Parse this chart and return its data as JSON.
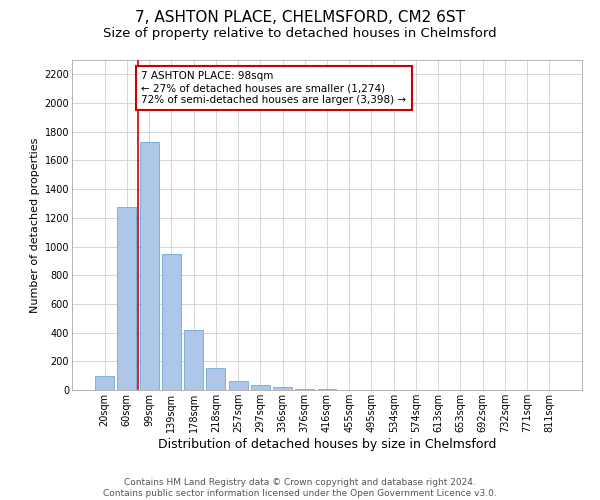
{
  "title1": "7, ASHTON PLACE, CHELMSFORD, CM2 6ST",
  "title2": "Size of property relative to detached houses in Chelmsford",
  "xlabel": "Distribution of detached houses by size in Chelmsford",
  "ylabel": "Number of detached properties",
  "categories": [
    "20sqm",
    "60sqm",
    "99sqm",
    "139sqm",
    "178sqm",
    "218sqm",
    "257sqm",
    "297sqm",
    "336sqm",
    "376sqm",
    "416sqm",
    "455sqm",
    "495sqm",
    "534sqm",
    "574sqm",
    "613sqm",
    "653sqm",
    "692sqm",
    "732sqm",
    "771sqm",
    "811sqm"
  ],
  "values": [
    100,
    1274,
    1730,
    950,
    415,
    150,
    65,
    35,
    20,
    8,
    4,
    2,
    1,
    1,
    0,
    0,
    0,
    0,
    0,
    0,
    0
  ],
  "bar_color": "#aec6e8",
  "bar_edge_color": "#5a9fd4",
  "vline_x": 1.5,
  "vline_color": "#cc0000",
  "annotation_text": "7 ASHTON PLACE: 98sqm\n← 27% of detached houses are smaller (1,274)\n72% of semi-detached houses are larger (3,398) →",
  "annotation_box_color": "#ffffff",
  "annotation_border_color": "#cc0000",
  "footer_text": "Contains HM Land Registry data © Crown copyright and database right 2024.\nContains public sector information licensed under the Open Government Licence v3.0.",
  "ylim": [
    0,
    2300
  ],
  "yticks": [
    0,
    200,
    400,
    600,
    800,
    1000,
    1200,
    1400,
    1600,
    1800,
    2000,
    2200
  ],
  "grid_color": "#d0d0d0",
  "background_color": "#ffffff",
  "title1_fontsize": 11,
  "title2_fontsize": 9.5,
  "ylabel_fontsize": 8,
  "xlabel_fontsize": 9,
  "tick_fontsize": 7,
  "footer_fontsize": 6.5,
  "annot_fontsize": 7.5
}
